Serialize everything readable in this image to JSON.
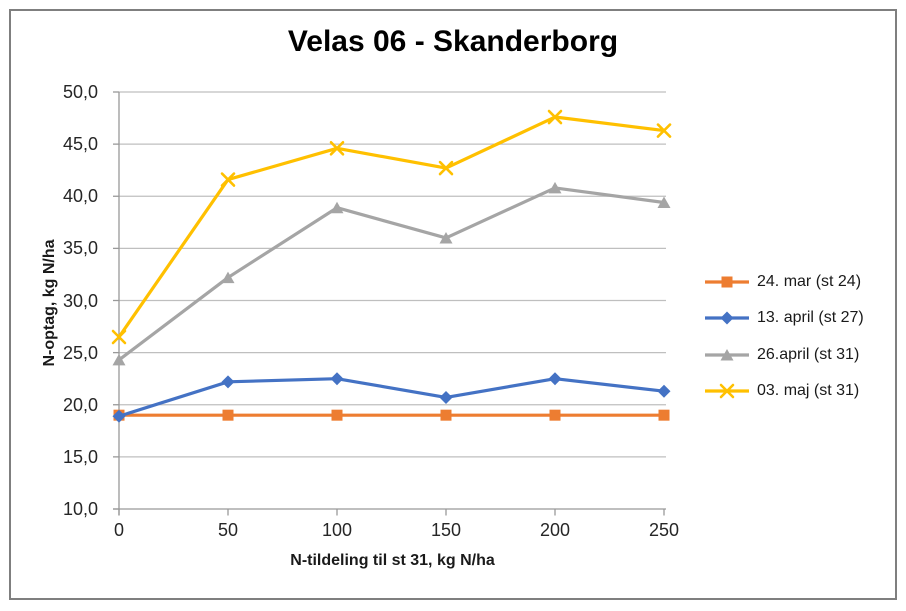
{
  "chart_data": {
    "type": "line",
    "title": "Velas 06 - Skanderborg",
    "xlabel": "N-tildeling til st 31, kg N/ha",
    "ylabel": "N-optag, kg N/ha",
    "x": [
      0,
      50,
      100,
      150,
      200,
      250
    ],
    "xtick_labels": [
      "0",
      "50",
      "100",
      "150",
      "200",
      "250"
    ],
    "ytick_labels": [
      "50,0",
      "45,0",
      "40,0",
      "35,0",
      "30,0",
      "25,0",
      "20,0",
      "15,0",
      "10,0"
    ],
    "ytick_values": [
      50,
      45,
      40,
      35,
      30,
      25,
      20,
      15,
      10
    ],
    "ylim": [
      10,
      50
    ],
    "xlim": [
      0,
      250
    ],
    "grid": true,
    "legend_position": "right",
    "series": [
      {
        "name": "24. mar (st 24)",
        "color": "#ED7D31",
        "marker": "square",
        "values": [
          19.0,
          19.0,
          19.0,
          19.0,
          19.0,
          19.0
        ]
      },
      {
        "name": "13. april (st 27)",
        "color": "#4472C4",
        "marker": "diamond",
        "values": [
          18.9,
          22.2,
          22.5,
          20.7,
          22.5,
          21.3
        ]
      },
      {
        "name": "26.april (st 31)",
        "color": "#A5A5A5",
        "marker": "triangle",
        "values": [
          24.3,
          32.2,
          38.9,
          36.0,
          40.8,
          39.4
        ]
      },
      {
        "name": "03. maj (st 31)",
        "color": "#FFC000",
        "marker": "x",
        "values": [
          26.5,
          41.6,
          44.6,
          42.7,
          47.6,
          46.3
        ]
      }
    ],
    "colors": {
      "gridline": "#BFBFBF",
      "axis": "#999999",
      "frame_border": "#7f7f7f",
      "text": "#262626",
      "title_text": "#000000"
    }
  }
}
